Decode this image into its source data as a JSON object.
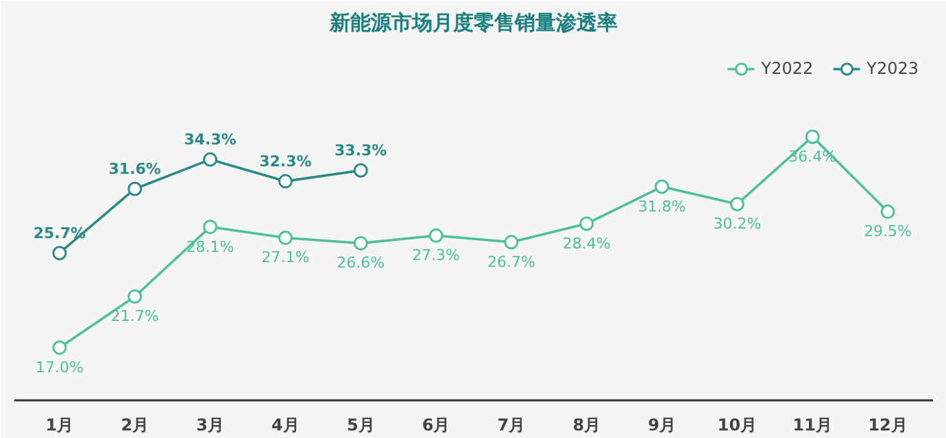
{
  "chart_data": {
    "type": "line",
    "title": "新能源市场月度零售销量渗透率",
    "categories": [
      "1月",
      "2月",
      "3月",
      "4月",
      "5月",
      "6月",
      "7月",
      "8月",
      "9月",
      "10月",
      "11月",
      "12月"
    ],
    "series": [
      {
        "name": "Y2022",
        "color": "#4dbf99",
        "values": [
          17.0,
          21.7,
          28.1,
          27.1,
          26.6,
          27.3,
          26.7,
          28.4,
          31.8,
          30.2,
          36.4,
          29.5
        ],
        "value_labels": [
          "17.0%",
          "21.7%",
          "28.1%",
          "27.1%",
          "26.6%",
          "27.3%",
          "26.7%",
          "28.4%",
          "31.8%",
          "30.2%",
          "36.4%",
          "29.5%"
        ]
      },
      {
        "name": "Y2023",
        "color": "#2a8a86",
        "values": [
          25.7,
          31.6,
          34.3,
          32.3,
          33.3,
          null,
          null,
          null,
          null,
          null,
          null,
          null
        ],
        "value_labels": [
          "25.7%",
          "31.6%",
          "34.3%",
          "32.3%",
          "33.3%",
          null,
          null,
          null,
          null,
          null,
          null,
          null
        ]
      }
    ],
    "marker": "circle",
    "line_style": "solid",
    "legend": "top right",
    "grid": false,
    "tick_labels": "x"
  }
}
